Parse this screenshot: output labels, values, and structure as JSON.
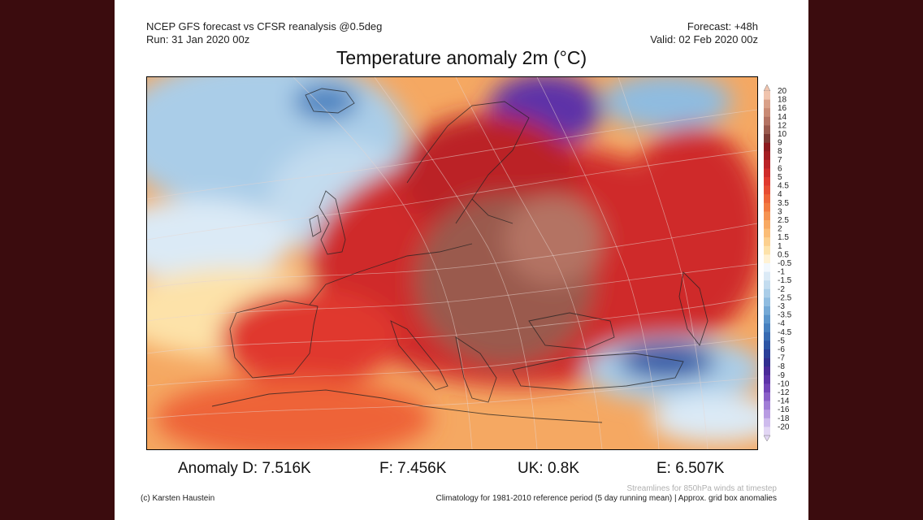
{
  "header": {
    "left_line1": "NCEP GFS forecast vs CFSR reanalysis @0.5deg",
    "left_line2": "Run: 31 Jan 2020 00z",
    "right_line1": "Forecast: +48h",
    "right_line2": "Valid: 02 Feb 2020 00z"
  },
  "title": "Temperature anomaly 2m (°C)",
  "legend": {
    "levels": [
      {
        "label": "20",
        "color": "#f0c4ae"
      },
      {
        "label": "18",
        "color": "#d9a088"
      },
      {
        "label": "16",
        "color": "#c98a74"
      },
      {
        "label": "14",
        "color": "#b47363"
      },
      {
        "label": "12",
        "color": "#9a5a4e"
      },
      {
        "label": "10",
        "color": "#7d3b35"
      },
      {
        "label": "9",
        "color": "#8c1a1e"
      },
      {
        "label": "8",
        "color": "#a41d22"
      },
      {
        "label": "7",
        "color": "#bb2226"
      },
      {
        "label": "6",
        "color": "#cf2b2a"
      },
      {
        "label": "5",
        "color": "#e0392e"
      },
      {
        "label": "4.5",
        "color": "#e74c32"
      },
      {
        "label": "4",
        "color": "#ee6438"
      },
      {
        "label": "3.5",
        "color": "#f27a40"
      },
      {
        "label": "3",
        "color": "#f59352"
      },
      {
        "label": "2.5",
        "color": "#f8a962"
      },
      {
        "label": "2",
        "color": "#fbbd76"
      },
      {
        "label": "1.5",
        "color": "#fcd08e"
      },
      {
        "label": "1",
        "color": "#fde2a9"
      },
      {
        "label": "0.5",
        "color": "#fff2d4"
      },
      {
        "label": "-0.5",
        "color": "#f2f8fd"
      },
      {
        "label": "-1",
        "color": "#dbeaf6"
      },
      {
        "label": "-1.5",
        "color": "#c3dcef"
      },
      {
        "label": "-2",
        "color": "#aacde8"
      },
      {
        "label": "-2.5",
        "color": "#8fbce0"
      },
      {
        "label": "-3",
        "color": "#74a9d6"
      },
      {
        "label": "-3.5",
        "color": "#5b95cb"
      },
      {
        "label": "-4",
        "color": "#4680bf"
      },
      {
        "label": "-4.5",
        "color": "#376bb2"
      },
      {
        "label": "-5",
        "color": "#2d56a5"
      },
      {
        "label": "-6",
        "color": "#2a3f99"
      },
      {
        "label": "-7",
        "color": "#312e8f"
      },
      {
        "label": "-8",
        "color": "#4a2a98"
      },
      {
        "label": "-9",
        "color": "#5d33a8"
      },
      {
        "label": "-10",
        "color": "#7244b8"
      },
      {
        "label": "-12",
        "color": "#8a5fc8"
      },
      {
        "label": "-14",
        "color": "#a07dd6"
      },
      {
        "label": "-16",
        "color": "#b89be2"
      },
      {
        "label": "-18",
        "color": "#cebbed"
      },
      {
        "label": "-20",
        "color": "#e2d6f4"
      }
    ]
  },
  "stats": {
    "d": "Anomaly D: 7.516K",
    "f": "F: 7.456K",
    "uk": "UK: 0.8K",
    "e": "E: 6.507K"
  },
  "footer": {
    "credit": "(c) Karsten Haustein",
    "streamlines_note": "Streamlines for 850hPa winds at timestep",
    "climatology_note": "Climatology for 1981-2010 reference period (5 day running mean) | Approx. grid box anomalies"
  }
}
